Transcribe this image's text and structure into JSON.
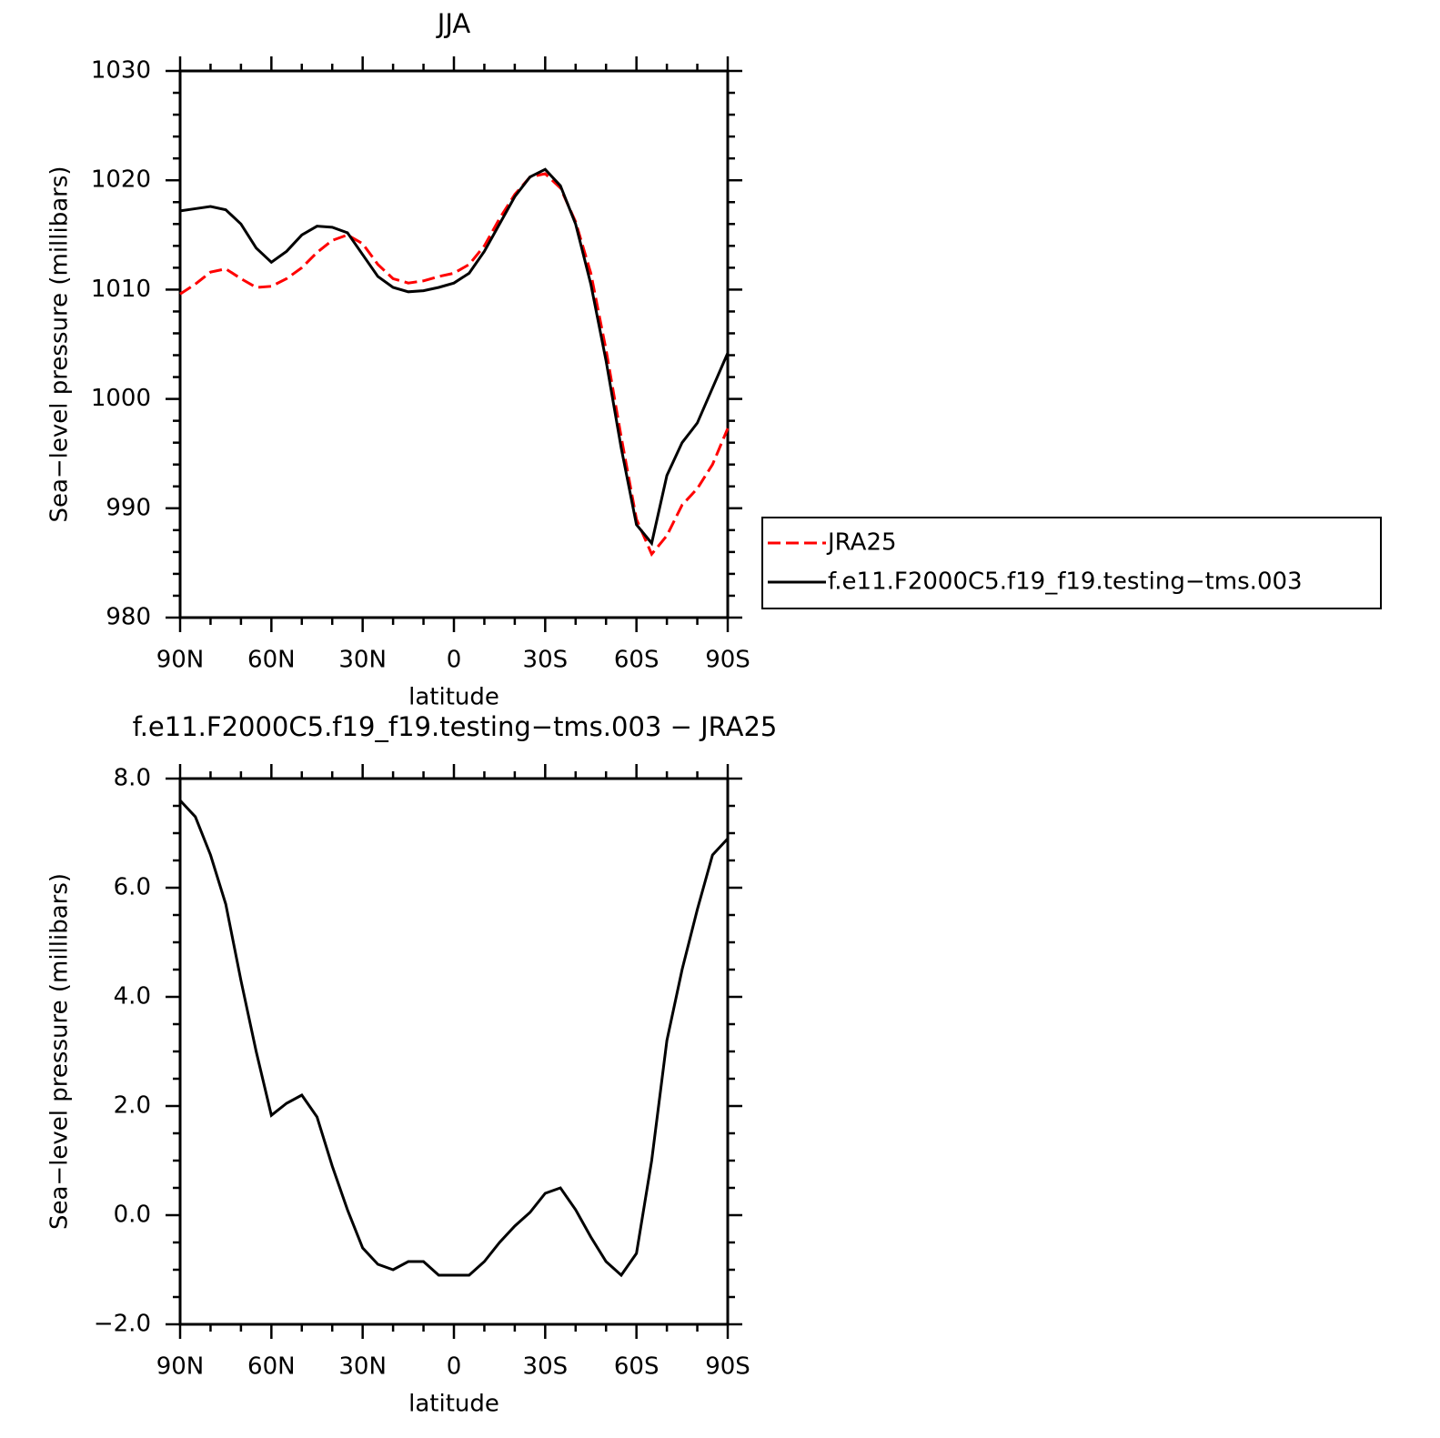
{
  "chart_data": [
    {
      "type": "line",
      "title": "JJA",
      "xlabel": "latitude",
      "ylabel": "Sea−level pressure (millibars)",
      "x": [
        90,
        85,
        80,
        75,
        70,
        65,
        60,
        55,
        50,
        45,
        40,
        35,
        30,
        25,
        20,
        15,
        10,
        5,
        0,
        -5,
        -10,
        -15,
        -20,
        -25,
        -30,
        -35,
        -40,
        -45,
        -50,
        -55,
        -60,
        -65,
        -70,
        -75,
        -80,
        -85,
        -90
      ],
      "series": [
        {
          "name": "JRA25",
          "color": "#ff0000",
          "linestyle": "dashed",
          "values": [
            1009.6,
            1010.5,
            1011.6,
            1011.9,
            1011.0,
            1010.2,
            1010.3,
            1011.0,
            1012.0,
            1013.4,
            1014.5,
            1015.0,
            1014.2,
            1012.3,
            1011.0,
            1010.6,
            1010.8,
            1011.2,
            1011.5,
            1012.3,
            1014.0,
            1016.5,
            1018.7,
            1020.3,
            1020.6,
            1019.3,
            1016.2,
            1011.5,
            1004.5,
            996.5,
            989.0,
            985.8,
            987.5,
            990.3,
            991.8,
            994.0,
            997.3
          ]
        },
        {
          "name": "f.e11.F2000C5.f19_f19.testing−tms.003",
          "color": "#000000",
          "linestyle": "solid",
          "values": [
            1017.2,
            1017.4,
            1017.6,
            1017.3,
            1016.0,
            1013.8,
            1012.5,
            1013.5,
            1015.0,
            1015.8,
            1015.7,
            1015.2,
            1013.2,
            1011.2,
            1010.2,
            1009.8,
            1009.9,
            1010.2,
            1010.6,
            1011.5,
            1013.5,
            1016.0,
            1018.5,
            1020.3,
            1021.0,
            1019.5,
            1016.0,
            1010.5,
            1003.5,
            995.5,
            988.5,
            986.8,
            993.0,
            996.0,
            997.8,
            1001.0,
            1004.2
          ]
        }
      ],
      "xlim": [
        90,
        -90
      ],
      "xticks": [
        {
          "value": 90,
          "label": "90N"
        },
        {
          "value": 60,
          "label": "60N"
        },
        {
          "value": 30,
          "label": "30N"
        },
        0,
        {
          "value": -30,
          "label": "30S"
        },
        {
          "value": -60,
          "label": "60S"
        },
        {
          "value": -90,
          "label": "90S"
        }
      ],
      "xminorticks": [
        80,
        70,
        50,
        40,
        20,
        10,
        -10,
        -20,
        -40,
        -50,
        -70,
        -80
      ],
      "ylim": [
        980,
        1030
      ],
      "yticks": [
        980,
        990,
        1000,
        1010,
        1020,
        1030
      ],
      "yminorticks": [
        982,
        984,
        986,
        988,
        992,
        994,
        996,
        998,
        1002,
        1004,
        1006,
        1008,
        1012,
        1014,
        1016,
        1018,
        1022,
        1024,
        1026,
        1028
      ],
      "legend": "outside-right"
    },
    {
      "type": "line",
      "title": "f.e11.F2000C5.f19_f19.testing−tms.003 − JRA25",
      "xlabel": "latitude",
      "ylabel": "Sea−level pressure (millibars)",
      "x": [
        90,
        85,
        80,
        75,
        70,
        65,
        60,
        55,
        50,
        45,
        40,
        35,
        30,
        25,
        20,
        15,
        10,
        5,
        0,
        -5,
        -10,
        -15,
        -20,
        -25,
        -30,
        -35,
        -40,
        -45,
        -50,
        -55,
        -60,
        -65,
        -70,
        -75,
        -80,
        -85,
        -90
      ],
      "series": [
        {
          "color": "#000000",
          "linestyle": "solid",
          "values": [
            7.6,
            7.3,
            6.6,
            5.7,
            4.3,
            3.0,
            1.83,
            2.05,
            2.2,
            1.8,
            0.9,
            0.1,
            -0.6,
            -0.9,
            -1.0,
            -0.85,
            -0.85,
            -1.1,
            -1.1,
            -1.1,
            -0.85,
            -0.5,
            -0.2,
            0.05,
            0.4,
            0.5,
            0.1,
            -0.4,
            -0.85,
            -1.1,
            -0.7,
            1.0,
            3.2,
            4.5,
            5.6,
            6.6,
            6.9
          ]
        }
      ],
      "xlim": [
        90,
        -90
      ],
      "xticks": [
        {
          "value": 90,
          "label": "90N"
        },
        {
          "value": 60,
          "label": "60N"
        },
        {
          "value": 30,
          "label": "30N"
        },
        0,
        {
          "value": -30,
          "label": "30S"
        },
        {
          "value": -60,
          "label": "60S"
        },
        {
          "value": -90,
          "label": "90S"
        }
      ],
      "xminorticks": [
        80,
        70,
        50,
        40,
        20,
        10,
        -10,
        -20,
        -40,
        -50,
        -70,
        -80
      ],
      "ylim": [
        -2,
        8
      ],
      "yticks": [
        {
          "value": -2,
          "label": "−2.0"
        },
        {
          "value": 0,
          "label": "0.0"
        },
        {
          "value": 2,
          "label": "2.0"
        },
        {
          "value": 4,
          "label": "4.0"
        },
        {
          "value": 6,
          "label": "6.0"
        },
        {
          "value": 8,
          "label": "8.0"
        }
      ],
      "yminorticks": [
        -1.5,
        -1,
        -0.5,
        0.5,
        1,
        1.5,
        2.5,
        3,
        3.5,
        4.5,
        5,
        5.5,
        6.5,
        7,
        7.5
      ]
    }
  ]
}
